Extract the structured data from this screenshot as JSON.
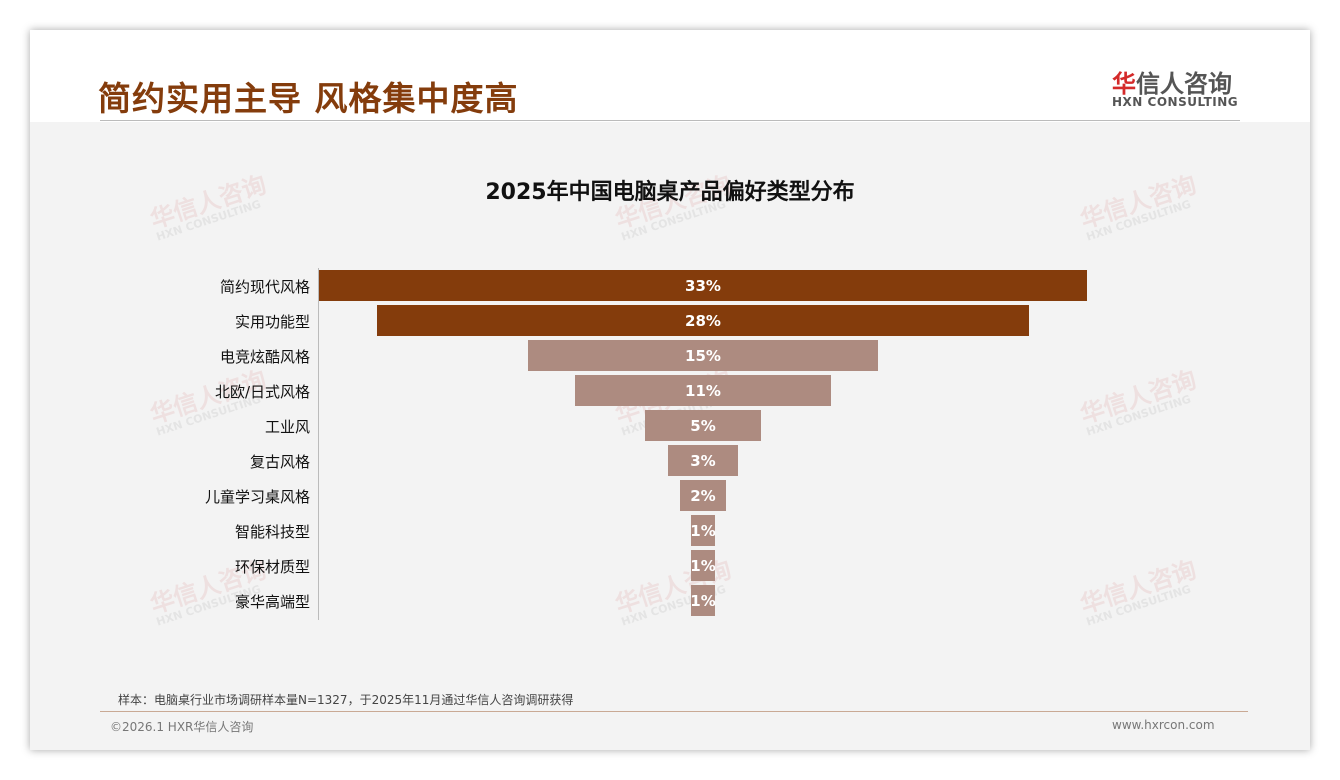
{
  "header": {
    "title": "简约实用主导 风格集中度高",
    "logo_cn_red": "华",
    "logo_cn": "信人咨询",
    "logo_en": "HXN CONSULTING"
  },
  "watermark": {
    "cn": "华信人咨询",
    "en": "HXN CONSULTING"
  },
  "chart_data": {
    "type": "bar",
    "orientation": "horizontal-funnel",
    "title": "2025年中国电脑桌产品偏好类型分布",
    "categories": [
      "简约现代风格",
      "实用功能型",
      "电竞炫酷风格",
      "北欧/日式风格",
      "工业风",
      "复古风格",
      "儿童学习桌风格",
      "智能科技型",
      "环保材质型",
      "豪华高端型"
    ],
    "values": [
      33,
      28,
      15,
      11,
      5,
      3,
      2,
      1,
      1,
      1
    ],
    "labels": [
      "33%",
      "28%",
      "15%",
      "11%",
      "5%",
      "3%",
      "2%",
      "1%",
      "1%",
      "1%"
    ],
    "unit": "%",
    "colors": {
      "highlight": "#843C0C",
      "normal": "#AD8B80"
    },
    "highlight_count": 2
  },
  "footer": {
    "note": "样本：电脑桌行业市场调研样本量N=1327，于2025年11月通过华信人咨询调研获得",
    "copyright": "©2026.1 HXR华信人咨询",
    "url": "www.hxrcon.com"
  }
}
